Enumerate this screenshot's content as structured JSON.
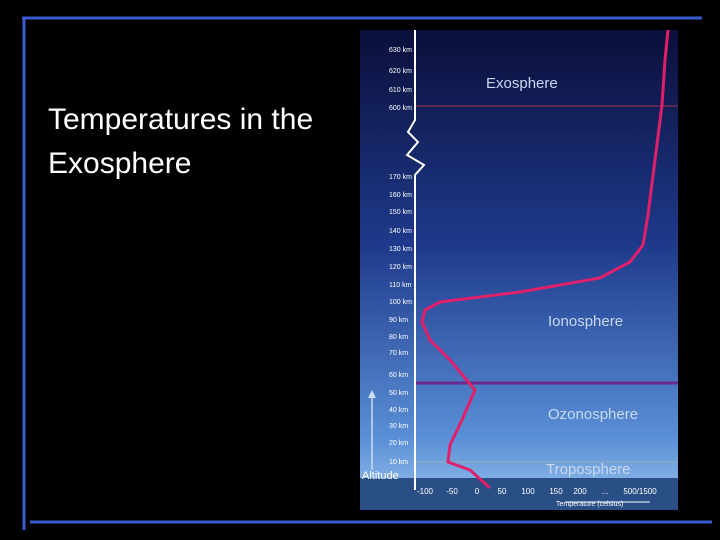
{
  "slide": {
    "title": "Temperatures in the Exosphere",
    "figure": {
      "layers": [
        "Exosphere",
        "Ionosphere",
        "Ozonosphere",
        "Troposphere"
      ],
      "altitude_labels": [
        "630 km",
        "620 km",
        "610 km",
        "600 km",
        "170 km",
        "160 km",
        "150 km",
        "140 km",
        "130 km",
        "120 km",
        "110 km",
        "100 km",
        "90 km",
        "80 km",
        "70 km",
        "60 km",
        "50 km",
        "40 km",
        "30 km",
        "20 km",
        "10 km"
      ],
      "altitude_title": "Altitude",
      "temperature_labels": [
        "-100",
        "-50",
        "0",
        "50",
        "100",
        "150",
        "200",
        "...",
        "500/1500"
      ],
      "temperature_title": "Temperature (celsius)"
    }
  }
}
